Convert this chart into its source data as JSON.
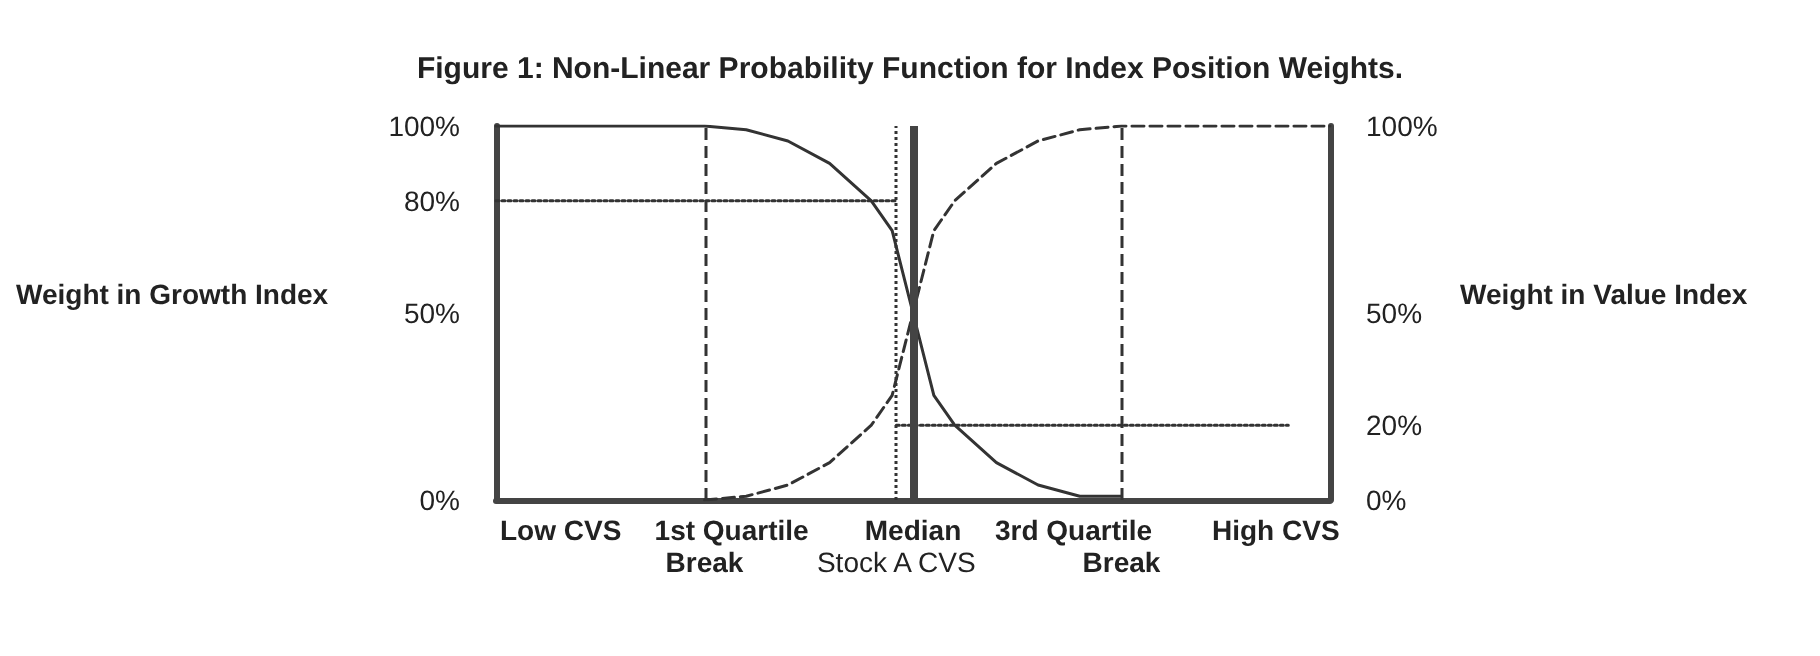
{
  "chart_data": {
    "type": "line",
    "title": "Figure 1: Non-Linear Probability Function for Index Position Weights.",
    "ylabel": "Weight in Growth Index",
    "y2label": "Weight in Value Index",
    "xlim": [
      0,
      4
    ],
    "xticks": [
      {
        "value": 0.31,
        "label": "Low CVS"
      },
      {
        "value": 1.13,
        "label": "1st Quartile"
      },
      {
        "value": 2,
        "label": "Median"
      },
      {
        "value": 2.77,
        "label": "3rd Quartile"
      },
      {
        "value": 3.74,
        "label": "High CVS"
      }
    ],
    "ylim": [
      0,
      100
    ],
    "yticks": [
      {
        "value": 0,
        "label": "0%"
      },
      {
        "value": 50,
        "label": "50%"
      },
      {
        "value": 80,
        "label": "80%"
      },
      {
        "value": 100,
        "label": "100%"
      }
    ],
    "y2lim": [
      0,
      100
    ],
    "y2ticks": [
      {
        "value": 0,
        "label": "0%"
      },
      {
        "value": 20,
        "label": "20%"
      },
      {
        "value": 50,
        "label": "50%"
      },
      {
        "value": 100,
        "label": "100%"
      }
    ],
    "grid": false,
    "marker": "none",
    "series": [
      {
        "color": "#333333",
        "line_style": "solid",
        "x": [
          0,
          1,
          1.2,
          1.4,
          1.6,
          1.8,
          1.9,
          2,
          2.1,
          2.2,
          2.4,
          2.6,
          2.8,
          3
        ],
        "values": [
          100,
          100,
          99,
          96,
          90,
          80,
          72,
          50,
          28,
          20,
          10,
          4,
          1,
          1
        ]
      },
      {
        "color": "#333333",
        "line_style": "dashed",
        "x": [
          1,
          1.2,
          1.4,
          1.6,
          1.8,
          1.9,
          2,
          2.1,
          2.2,
          2.4,
          2.6,
          2.8,
          3,
          4
        ],
        "values": [
          0,
          1,
          4,
          10,
          20,
          28,
          50,
          72,
          80,
          90,
          96,
          99,
          100,
          100
        ]
      },
      {
        "color": "#333333",
        "line_style": "dotted",
        "x": [
          0,
          1.92
        ],
        "values": [
          80,
          80
        ]
      },
      {
        "color": "#333333",
        "line_style": "dotted",
        "x": [
          1.92,
          3.8
        ],
        "values": [
          20,
          20
        ]
      }
    ],
    "ref_lines": [
      {
        "axis": "x",
        "value": 1,
        "label": "Break",
        "line_style": "dashed",
        "color": "#333333"
      },
      {
        "axis": "x",
        "value": 1.92,
        "label": "Stock A CVS",
        "line_style": "dotted",
        "color": "#333333"
      },
      {
        "axis": "x",
        "value": 2,
        "label": null,
        "line_style": "solid",
        "color": "#444444"
      },
      {
        "axis": "x",
        "value": 3,
        "label": "Break",
        "line_style": "dashed",
        "color": "#333333"
      }
    ]
  }
}
